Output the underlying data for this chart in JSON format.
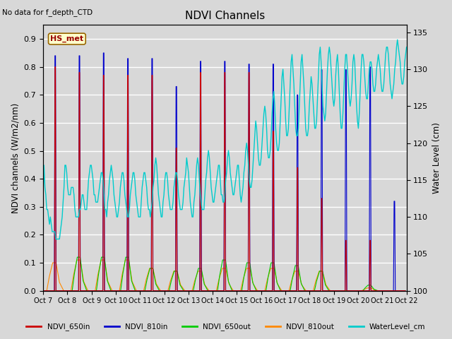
{
  "title": "NDVI Channels",
  "note": "No data for f_depth_CTD",
  "ylabel_left": "NDVI channels (W/m2/nm)",
  "ylabel_right": "Water Level (cm)",
  "ylim_left": [
    0.0,
    0.95
  ],
  "ylim_right": [
    100,
    136
  ],
  "yticks_left": [
    0.0,
    0.1,
    0.2,
    0.3,
    0.4,
    0.5,
    0.6,
    0.7,
    0.8,
    0.9
  ],
  "yticks_right": [
    100,
    105,
    110,
    115,
    120,
    125,
    130,
    135
  ],
  "xtick_positions": [
    0,
    1,
    2,
    3,
    4,
    5,
    6,
    7,
    8,
    9,
    10,
    11,
    12,
    13,
    14,
    15
  ],
  "xtick_labels": [
    "Oct 7",
    "Oct 8",
    "Oct 9",
    "Oct 10",
    "Oct 11",
    "Oct 12",
    "Oct 13",
    "Oct 14",
    "Oct 15",
    "Oct 16",
    "Oct 17",
    "Oct 18",
    "Oct 19",
    "Oct 20",
    "Oct 21",
    "Oct 22"
  ],
  "legend_labels": [
    "NDVI_650in",
    "NDVI_810in",
    "NDVI_650out",
    "NDVI_810out",
    "WaterLevel_cm"
  ],
  "legend_colors": [
    "#cc0000",
    "#0000cc",
    "#00cc00",
    "#ff8800",
    "#00cccc"
  ],
  "annotation_text": "HS_met",
  "spike_centers": [
    0.5,
    1.5,
    2.5,
    3.5,
    4.5,
    5.5,
    6.5,
    7.5,
    8.5,
    9.5,
    10.5,
    11.5,
    12.5,
    13.5,
    14.5
  ],
  "ndvi_650in_peaks": [
    0.8,
    0.78,
    0.77,
    0.77,
    0.77,
    0.51,
    0.78,
    0.78,
    0.78,
    0.57,
    0.44,
    0.33,
    0.18,
    0.18,
    0.0
  ],
  "ndvi_810in_peaks": [
    0.84,
    0.84,
    0.85,
    0.83,
    0.83,
    0.73,
    0.82,
    0.82,
    0.81,
    0.81,
    0.7,
    0.79,
    0.79,
    0.8,
    0.32
  ],
  "ndvi_650out_peaks": [
    0.0,
    0.12,
    0.12,
    0.12,
    0.08,
    0.07,
    0.08,
    0.11,
    0.1,
    0.1,
    0.09,
    0.07,
    0.0,
    0.02,
    0.0
  ],
  "ndvi_810out_peaks": [
    0.1,
    0.11,
    0.11,
    0.11,
    0.08,
    0.07,
    0.07,
    0.08,
    0.08,
    0.08,
    0.07,
    0.07,
    0.0,
    0.01,
    0.0
  ],
  "water_level_values": [
    113,
    117,
    114,
    113,
    111,
    111,
    110,
    109,
    110,
    109,
    108,
    108,
    108,
    108,
    107,
    107,
    107,
    107,
    107,
    108,
    109,
    110,
    112,
    114,
    117,
    117,
    116,
    114,
    113,
    113,
    113,
    114,
    114,
    114,
    113,
    111,
    110,
    110,
    110,
    110,
    111,
    111,
    112,
    113,
    113,
    112,
    111,
    111,
    111,
    113,
    115,
    116,
    117,
    117,
    116,
    115,
    113,
    113,
    112,
    112,
    112,
    113,
    114,
    115,
    116,
    116,
    115,
    113,
    111,
    111,
    110,
    112,
    113,
    115,
    116,
    117,
    116,
    115,
    113,
    112,
    111,
    110,
    110,
    111,
    112,
    114,
    115,
    116,
    116,
    115,
    113,
    112,
    111,
    110,
    110,
    111,
    113,
    114,
    115,
    116,
    116,
    115,
    113,
    112,
    111,
    110,
    110,
    110,
    112,
    114,
    115,
    116,
    116,
    115,
    114,
    112,
    111,
    111,
    110,
    111,
    112,
    114,
    115,
    117,
    118,
    117,
    115,
    113,
    112,
    111,
    110,
    110,
    112,
    113,
    115,
    116,
    116,
    115,
    113,
    112,
    111,
    111,
    111,
    112,
    114,
    115,
    116,
    116,
    115,
    113,
    112,
    111,
    111,
    111,
    112,
    114,
    115,
    116,
    118,
    117,
    116,
    114,
    112,
    111,
    110,
    110,
    112,
    113,
    115,
    117,
    118,
    117,
    115,
    113,
    112,
    111,
    111,
    111,
    113,
    115,
    116,
    118,
    119,
    118,
    116,
    114,
    113,
    112,
    112,
    113,
    114,
    115,
    116,
    117,
    117,
    115,
    113,
    113,
    112,
    112,
    113,
    115,
    116,
    118,
    119,
    118,
    116,
    115,
    114,
    113,
    113,
    114,
    115,
    116,
    117,
    117,
    115,
    113,
    112,
    113,
    114,
    116,
    117,
    119,
    120,
    119,
    117,
    115,
    114,
    114,
    115,
    117,
    119,
    121,
    123,
    122,
    120,
    118,
    117,
    117,
    118,
    120,
    122,
    124,
    125,
    124,
    122,
    119,
    118,
    118,
    119,
    121,
    124,
    126,
    127,
    125,
    122,
    120,
    119,
    119,
    120,
    123,
    126,
    129,
    130,
    128,
    126,
    123,
    121,
    121,
    122,
    125,
    128,
    131,
    132,
    130,
    128,
    125,
    122,
    121,
    121,
    122,
    125,
    128,
    131,
    132,
    130,
    128,
    125,
    122,
    121,
    121,
    122,
    125,
    127,
    129,
    128,
    126,
    124,
    122,
    122,
    123,
    126,
    129,
    132,
    133,
    131,
    128,
    125,
    124,
    123,
    124,
    127,
    130,
    132,
    133,
    132,
    130,
    128,
    126,
    125,
    126,
    129,
    131,
    132,
    130,
    127,
    124,
    122,
    122,
    124,
    127,
    130,
    132,
    132,
    130,
    128,
    126,
    125,
    126,
    128,
    131,
    132,
    131,
    128,
    125,
    123,
    122,
    124,
    127,
    130,
    132,
    132,
    131,
    129,
    127,
    126,
    126,
    128,
    130,
    131,
    131,
    130,
    128,
    127,
    127,
    128,
    130,
    131,
    132,
    131,
    130,
    128,
    127,
    127,
    128,
    130,
    132,
    133,
    133,
    132,
    130,
    128,
    127,
    126,
    127,
    128,
    130,
    131,
    133,
    134,
    133,
    132,
    131,
    129,
    128,
    128,
    129,
    131,
    132,
    133
  ]
}
